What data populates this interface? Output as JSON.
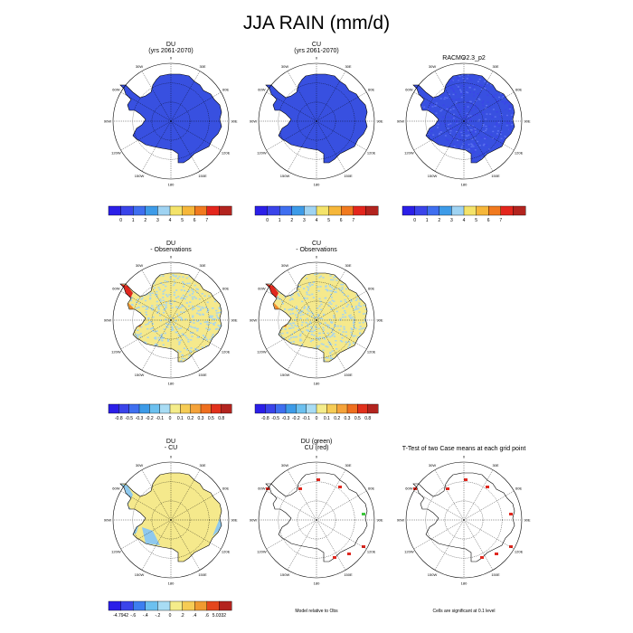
{
  "title": "JJA RAIN (mm/d)",
  "colors": {
    "row1": [
      "#2b1fe8",
      "#3a44ea",
      "#3f6ff0",
      "#3d9be8",
      "#9fd3f2",
      "#f4e36a",
      "#f6b73a",
      "#f17a1f",
      "#e4261d",
      "#b3241f"
    ],
    "diff": [
      "#2b1fe8",
      "#3a44ea",
      "#3f6ff0",
      "#3d9be8",
      "#6cc0ef",
      "#a8dcf4",
      "#f4ec8a",
      "#f6cc55",
      "#f5a33a",
      "#ef6f1f",
      "#e2311c",
      "#b3241f"
    ],
    "ttest": [
      "#2b1fe8",
      "#3a44ea",
      "#3d7ef0",
      "#6cc0ef",
      "#a8dcf4",
      "#f4ec8a",
      "#f6cc55",
      "#f09a30",
      "#e4461d",
      "#b3241f"
    ],
    "map_fill": "#3850e0",
    "diff_land": "#f5e98c",
    "diff_spot": "#a9d5ec",
    "diff_red": "#e0281f",
    "ttest_red": "#e0281f",
    "ttest_green": "#3cc83c"
  },
  "longitude_labels": [
    "0",
    "30E",
    "60E",
    "90E",
    "120E",
    "150E",
    "180",
    "150W",
    "120W",
    "90W",
    "60W",
    "30W"
  ],
  "panels": [
    {
      "title_lines": [
        "DU",
        "(yrs 2061-2070)"
      ],
      "type": "precip"
    },
    {
      "title_lines": [
        "CU",
        "(yrs 2061-2070)"
      ],
      "type": "precip"
    },
    {
      "title_lines": [
        "RACMO2.3_p2"
      ],
      "type": "precip_obs"
    },
    {
      "title_lines": [
        "DU",
        "- Observations"
      ],
      "type": "diff"
    },
    {
      "title_lines": [
        "CU",
        "- Observations"
      ],
      "type": "diff"
    },
    {
      "title_lines": [
        "DU",
        "- CU"
      ],
      "type": "dudiff"
    },
    {
      "title_lines": [
        "DU (green)",
        "CU (red)"
      ],
      "type": "sig"
    },
    {
      "title_lines": [
        "T-Test of two Case means at each grid point"
      ],
      "type": "sig"
    }
  ],
  "colorbars": {
    "row1": {
      "labels": [
        "0",
        "1",
        "2",
        "3",
        "4",
        "5",
        "6",
        "7"
      ]
    },
    "row2": {
      "labels": [
        "-0.8",
        "-0.5",
        "-0.3",
        "-0.2",
        "-0.1",
        "0",
        "0.1",
        "0.2",
        "0.3",
        "0.5",
        "0.8"
      ]
    },
    "row3": {
      "labels": [
        "-4.7942",
        "-.6",
        "-.4",
        "-.2",
        "0",
        ".2",
        ".4",
        ".6",
        "5.0332"
      ]
    }
  },
  "notes": {
    "model_rel": "Model relative to Obs",
    "cells_sig": "Cells are significant at 0.1 level"
  },
  "chart_data": [
    {
      "type": "heatmap",
      "title": "DU (yrs 2061-2070)",
      "variable": "JJA RAIN",
      "units": "mm/d",
      "legend_levels": [
        0,
        1,
        2,
        3,
        4,
        5,
        6,
        7
      ],
      "dominant_value_range": [
        0,
        1
      ]
    },
    {
      "type": "heatmap",
      "title": "CU (yrs 2061-2070)",
      "variable": "JJA RAIN",
      "units": "mm/d",
      "legend_levels": [
        0,
        1,
        2,
        3,
        4,
        5,
        6,
        7
      ],
      "dominant_value_range": [
        0,
        1
      ]
    },
    {
      "type": "heatmap",
      "title": "RACMO2.3_p2",
      "variable": "JJA RAIN",
      "units": "mm/d",
      "legend_levels": [
        0,
        1,
        2,
        3,
        4,
        5,
        6,
        7
      ],
      "dominant_value_range": [
        0,
        1
      ]
    },
    {
      "type": "heatmap",
      "title": "DU - Observations",
      "legend_levels": [
        -0.8,
        -0.5,
        -0.3,
        -0.2,
        -0.1,
        0,
        0.1,
        0.2,
        0.3,
        0.5,
        0.8
      ]
    },
    {
      "type": "heatmap",
      "title": "CU - Observations",
      "legend_levels": [
        -0.8,
        -0.5,
        -0.3,
        -0.2,
        -0.1,
        0,
        0.1,
        0.2,
        0.3,
        0.5,
        0.8
      ]
    },
    {
      "type": "heatmap",
      "title": "DU - CU",
      "legend_levels": [
        -4.7942,
        -0.6,
        -0.4,
        -0.2,
        0,
        0.2,
        0.4,
        0.6,
        5.0332
      ]
    },
    {
      "type": "heatmap",
      "title": "DU (green) CU (red)",
      "note": "Model relative to Obs"
    },
    {
      "type": "heatmap",
      "title": "T-Test of two Case means at each grid point",
      "note": "Cells are significant at 0.1 level"
    }
  ]
}
